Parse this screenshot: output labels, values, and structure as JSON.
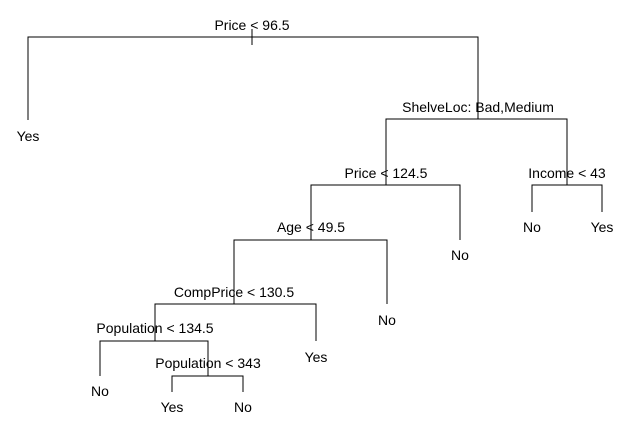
{
  "tree": {
    "splits": [
      {
        "id": "root",
        "label": "Price < 96.5"
      },
      {
        "id": "shelveloc",
        "label": "ShelveLoc: Bad,Medium"
      },
      {
        "id": "price2",
        "label": "Price < 124.5"
      },
      {
        "id": "income",
        "label": "Income < 43"
      },
      {
        "id": "age",
        "label": "Age < 49.5"
      },
      {
        "id": "compprice",
        "label": "CompPrice < 130.5"
      },
      {
        "id": "population1",
        "label": "Population < 134.5"
      },
      {
        "id": "population2",
        "label": "Population < 343"
      }
    ],
    "leaves": [
      {
        "id": "leaf-root-left",
        "label": "Yes"
      },
      {
        "id": "leaf-income-left",
        "label": "No"
      },
      {
        "id": "leaf-income-right",
        "label": "Yes"
      },
      {
        "id": "leaf-price2-right",
        "label": "No"
      },
      {
        "id": "leaf-age-right",
        "label": "No"
      },
      {
        "id": "leaf-compprice-right",
        "label": "Yes"
      },
      {
        "id": "leaf-population1-left",
        "label": "No"
      },
      {
        "id": "leaf-population2-left",
        "label": "Yes"
      },
      {
        "id": "leaf-population2-right",
        "label": "No"
      }
    ]
  }
}
